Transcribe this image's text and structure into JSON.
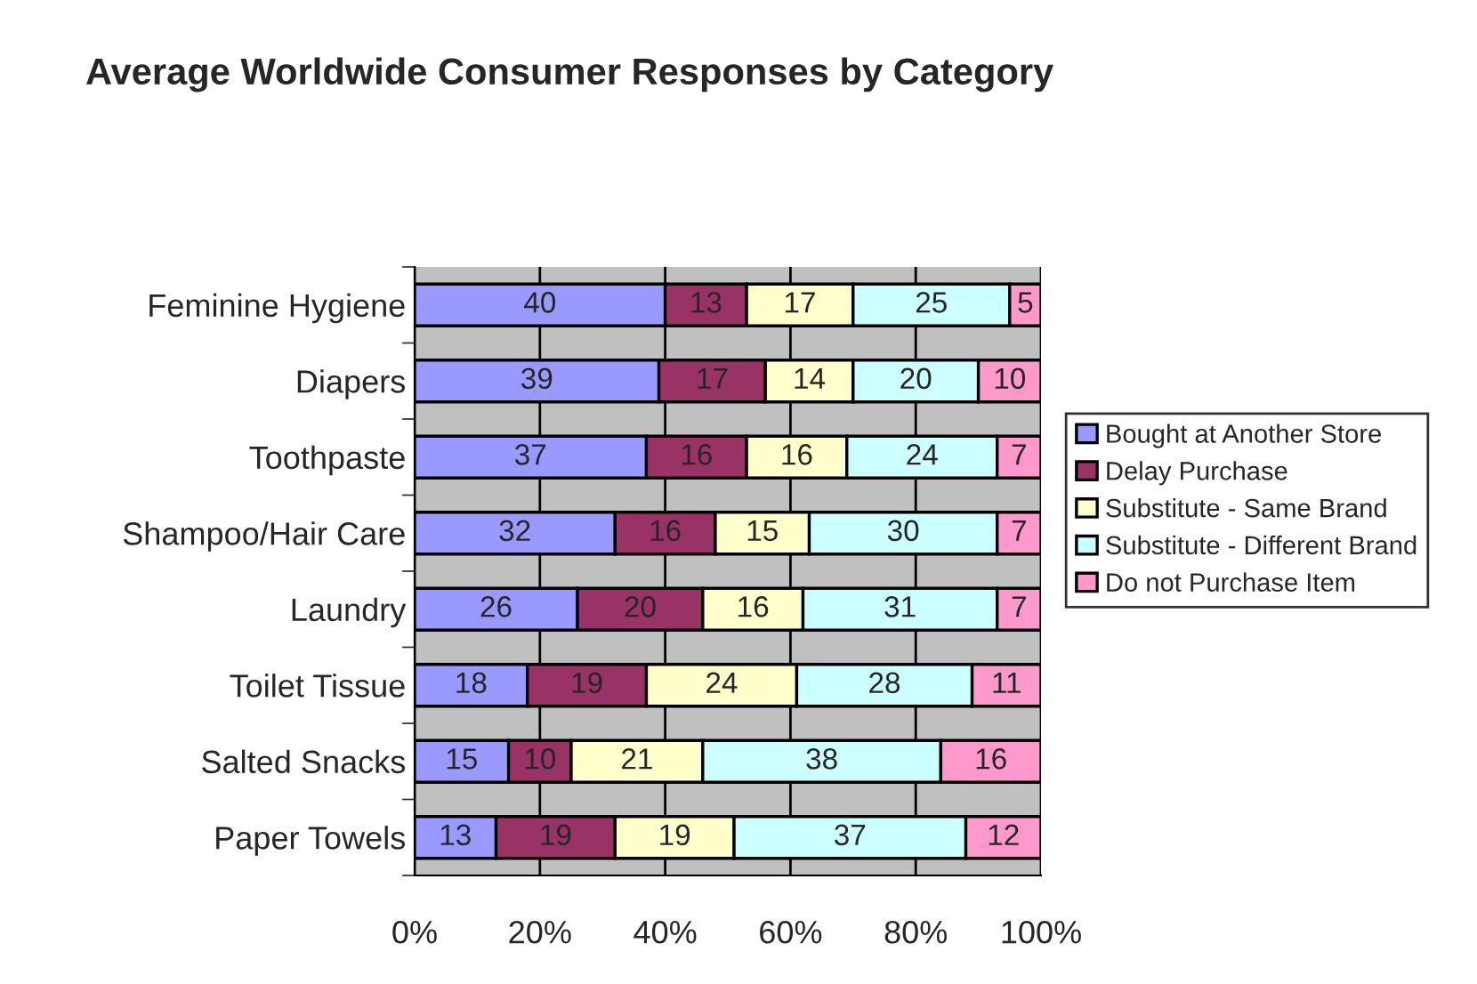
{
  "chart_data": {
    "type": "bar",
    "orientation": "horizontal",
    "stacked": true,
    "title": "Average Worldwide Consumer Responses by Category",
    "categories": [
      "Feminine Hygiene",
      "Diapers",
      "Toothpaste",
      "Shampoo/Hair Care",
      "Laundry",
      "Toilet Tissue",
      "Salted Snacks",
      "Paper Towels"
    ],
    "series": [
      {
        "name": "Bought at Another Store",
        "color": "#9999ff",
        "values": [
          40,
          39,
          37,
          32,
          26,
          18,
          15,
          13
        ]
      },
      {
        "name": "Delay Purchase",
        "color": "#993366",
        "values": [
          13,
          17,
          16,
          16,
          20,
          19,
          10,
          19
        ]
      },
      {
        "name": "Substitute - Same Brand",
        "color": "#ffffcc",
        "values": [
          17,
          14,
          16,
          15,
          16,
          24,
          21,
          19
        ]
      },
      {
        "name": "Substitute - Different Brand",
        "color": "#ccffff",
        "values": [
          25,
          20,
          24,
          30,
          31,
          28,
          38,
          37
        ]
      },
      {
        "name": "Do not Purchase Item",
        "color": "#ff99cc",
        "values": [
          5,
          10,
          7,
          7,
          7,
          11,
          16,
          12
        ]
      }
    ],
    "xlim": [
      0,
      100
    ],
    "xticks": [
      {
        "value": 0,
        "label": "0%"
      },
      {
        "value": 20,
        "label": "20%"
      },
      {
        "value": 40,
        "label": "40%"
      },
      {
        "value": 60,
        "label": "60%"
      },
      {
        "value": 80,
        "label": "80%"
      },
      {
        "value": 100,
        "label": "100%"
      }
    ],
    "grid": "x",
    "legend": "right",
    "data_labels": true
  }
}
